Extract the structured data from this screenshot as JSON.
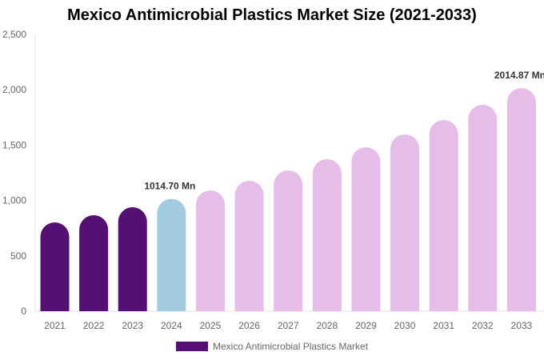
{
  "chart_data": {
    "type": "bar",
    "title": "Mexico Antimicrobial Plastics Market Size (2021-2033)",
    "categories": [
      "2021",
      "2022",
      "2023",
      "2024",
      "2025",
      "2026",
      "2027",
      "2028",
      "2029",
      "2030",
      "2031",
      "2032",
      "2033"
    ],
    "series": [
      {
        "name": "Mexico Antimicrobial Plastics Market",
        "values": [
          802,
          867,
          939,
          1014.7,
          1091,
          1178,
          1272,
          1373,
          1481,
          1597,
          1727,
          1864,
          2014.87
        ]
      }
    ],
    "bar_colors": [
      "#541173",
      "#541173",
      "#541173",
      "#a3cbdf",
      "#e6bde8",
      "#e6bde8",
      "#e6bde8",
      "#e6bde8",
      "#e6bde8",
      "#e6bde8",
      "#e6bde8",
      "#e6bde8",
      "#e6bde8"
    ],
    "data_labels": [
      {
        "category": "2024",
        "text": "1014.70 Mn"
      },
      {
        "category": "2033",
        "text": "2014.87 Mn"
      }
    ],
    "ylim": [
      0,
      2500
    ],
    "yticks": [
      "0",
      "500",
      "1,000",
      "1,500",
      "2,000",
      "2,500"
    ],
    "ytick_values": [
      0,
      500,
      1000,
      1500,
      2000,
      2500
    ],
    "xlabel": "",
    "ylabel": "",
    "grid": false,
    "legend_position": "bottom",
    "legend_color": "#541173"
  }
}
